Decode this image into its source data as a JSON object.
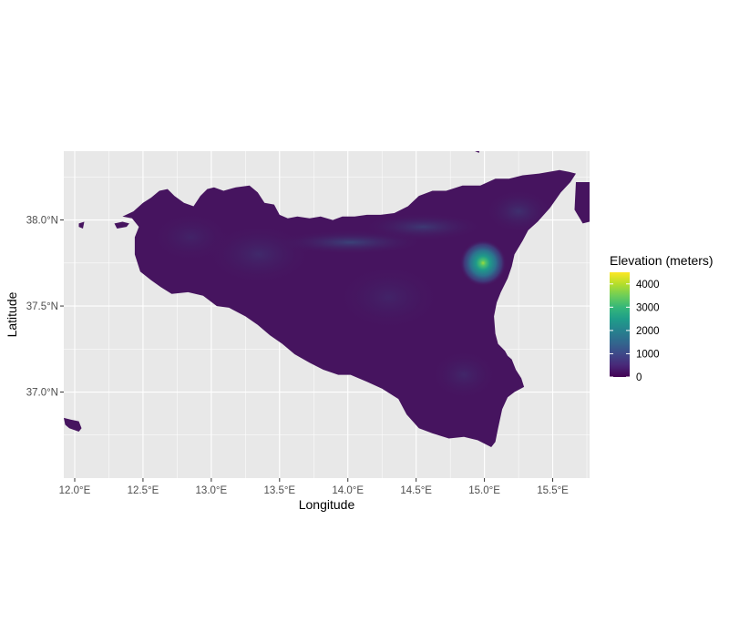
{
  "chart_data": {
    "type": "heatmap",
    "title": "",
    "xlabel": "Longitude",
    "ylabel": "Latitude",
    "xlim": [
      11.92,
      15.77
    ],
    "ylim": [
      36.5,
      38.4
    ],
    "x_ticks": [
      {
        "value": 12.0,
        "label": "12.0°E"
      },
      {
        "value": 12.5,
        "label": "12.5°E"
      },
      {
        "value": 13.0,
        "label": "13.0°E"
      },
      {
        "value": 13.5,
        "label": "13.5°E"
      },
      {
        "value": 14.0,
        "label": "14.0°E"
      },
      {
        "value": 14.5,
        "label": "14.5°E"
      },
      {
        "value": 15.0,
        "label": "15.0°E"
      },
      {
        "value": 15.5,
        "label": "15.5°E"
      }
    ],
    "y_ticks": [
      {
        "value": 37.0,
        "label": "37.0°N"
      },
      {
        "value": 37.5,
        "label": "37.5°N"
      },
      {
        "value": 38.0,
        "label": "38.0°N"
      }
    ],
    "grid": true,
    "panel_background": "#e8e8e8",
    "legend": {
      "title": "Elevation (meters)",
      "position": "right",
      "range": [
        0,
        4500
      ],
      "breaks": [
        {
          "value": 0,
          "label": "0"
        },
        {
          "value": 1000,
          "label": "1000"
        },
        {
          "value": 2000,
          "label": "2000"
        },
        {
          "value": 3000,
          "label": "3000"
        },
        {
          "value": 4000,
          "label": "4000"
        }
      ],
      "colors": [
        "#440154",
        "#482878",
        "#3e4989",
        "#31688e",
        "#26828e",
        "#1f9e89",
        "#35b779",
        "#6ece58",
        "#b5de2b",
        "#fde725"
      ]
    },
    "land_color": "#46145f",
    "peak": {
      "lon": 14.99,
      "lat": 37.75,
      "elevation": 3300
    },
    "island_outline": [
      [
        12.35,
        38.02
      ],
      [
        12.43,
        38.05
      ],
      [
        12.5,
        38.1
      ],
      [
        12.56,
        38.13
      ],
      [
        12.62,
        38.17
      ],
      [
        12.68,
        38.18
      ],
      [
        12.73,
        38.14
      ],
      [
        12.8,
        38.1
      ],
      [
        12.87,
        38.08
      ],
      [
        12.92,
        38.14
      ],
      [
        12.97,
        38.18
      ],
      [
        13.02,
        38.19
      ],
      [
        13.09,
        38.17
      ],
      [
        13.18,
        38.19
      ],
      [
        13.28,
        38.2
      ],
      [
        13.34,
        38.16
      ],
      [
        13.39,
        38.1
      ],
      [
        13.46,
        38.09
      ],
      [
        13.5,
        38.03
      ],
      [
        13.56,
        38.01
      ],
      [
        13.63,
        38.02
      ],
      [
        13.72,
        38.01
      ],
      [
        13.8,
        38.02
      ],
      [
        13.89,
        38.0
      ],
      [
        13.96,
        38.02
      ],
      [
        14.05,
        38.02
      ],
      [
        14.14,
        38.03
      ],
      [
        14.24,
        38.03
      ],
      [
        14.34,
        38.04
      ],
      [
        14.44,
        38.08
      ],
      [
        14.52,
        38.14
      ],
      [
        14.62,
        38.17
      ],
      [
        14.72,
        38.17
      ],
      [
        14.84,
        38.2
      ],
      [
        14.97,
        38.2
      ],
      [
        15.08,
        38.24
      ],
      [
        15.18,
        38.24
      ],
      [
        15.28,
        38.26
      ],
      [
        15.4,
        38.27
      ],
      [
        15.55,
        38.29
      ],
      [
        15.62,
        38.28
      ],
      [
        15.67,
        38.27
      ],
      [
        15.63,
        38.22
      ],
      [
        15.56,
        38.16
      ],
      [
        15.48,
        38.07
      ],
      [
        15.39,
        37.99
      ],
      [
        15.32,
        37.94
      ],
      [
        15.28,
        37.88
      ],
      [
        15.22,
        37.8
      ],
      [
        15.2,
        37.73
      ],
      [
        15.17,
        37.66
      ],
      [
        15.12,
        37.58
      ],
      [
        15.09,
        37.52
      ],
      [
        15.07,
        37.44
      ],
      [
        15.08,
        37.34
      ],
      [
        15.1,
        37.28
      ],
      [
        15.15,
        37.24
      ],
      [
        15.17,
        37.21
      ],
      [
        15.2,
        37.19
      ],
      [
        15.23,
        37.13
      ],
      [
        15.27,
        37.08
      ],
      [
        15.29,
        37.03
      ],
      [
        15.22,
        37.0
      ],
      [
        15.17,
        36.97
      ],
      [
        15.13,
        36.9
      ],
      [
        15.1,
        36.79
      ],
      [
        15.08,
        36.71
      ],
      [
        15.05,
        36.68
      ],
      [
        14.95,
        36.72
      ],
      [
        14.85,
        36.74
      ],
      [
        14.74,
        36.73
      ],
      [
        14.62,
        36.76
      ],
      [
        14.52,
        36.79
      ],
      [
        14.43,
        36.87
      ],
      [
        14.37,
        36.96
      ],
      [
        14.25,
        37.02
      ],
      [
        14.14,
        37.06
      ],
      [
        14.02,
        37.1
      ],
      [
        13.93,
        37.1
      ],
      [
        13.82,
        37.13
      ],
      [
        13.72,
        37.17
      ],
      [
        13.61,
        37.22
      ],
      [
        13.52,
        37.28
      ],
      [
        13.43,
        37.33
      ],
      [
        13.34,
        37.39
      ],
      [
        13.25,
        37.44
      ],
      [
        13.13,
        37.49
      ],
      [
        13.04,
        37.5
      ],
      [
        12.94,
        37.56
      ],
      [
        12.83,
        37.58
      ],
      [
        12.71,
        37.57
      ],
      [
        12.63,
        37.61
      ],
      [
        12.56,
        37.65
      ],
      [
        12.48,
        37.7
      ],
      [
        12.44,
        37.8
      ],
      [
        12.44,
        37.9
      ],
      [
        12.47,
        37.96
      ],
      [
        12.42,
        38.01
      ],
      [
        12.35,
        38.02
      ]
    ],
    "small_islands": [
      [
        [
          12.29,
          37.98
        ],
        [
          12.35,
          37.99
        ],
        [
          12.4,
          37.98
        ],
        [
          12.38,
          37.96
        ],
        [
          12.31,
          37.95
        ],
        [
          12.29,
          37.98
        ]
      ],
      [
        [
          12.03,
          37.98
        ],
        [
          12.07,
          37.99
        ],
        [
          12.06,
          37.95
        ],
        [
          12.03,
          37.96
        ],
        [
          12.03,
          37.98
        ]
      ],
      [
        [
          11.92,
          36.85
        ],
        [
          11.97,
          36.84
        ],
        [
          12.03,
          36.83
        ],
        [
          12.05,
          36.79
        ],
        [
          12.03,
          36.77
        ],
        [
          11.96,
          36.79
        ],
        [
          11.93,
          36.81
        ],
        [
          11.92,
          36.85
        ]
      ],
      [
        [
          14.93,
          38.42
        ],
        [
          14.97,
          38.42
        ],
        [
          14.96,
          38.39
        ],
        [
          14.93,
          38.4
        ],
        [
          14.93,
          38.42
        ]
      ],
      [
        [
          15.67,
          38.22
        ],
        [
          15.77,
          38.22
        ],
        [
          15.77,
          37.99
        ],
        [
          15.72,
          37.98
        ],
        [
          15.66,
          38.06
        ],
        [
          15.67,
          38.22
        ]
      ]
    ],
    "raised_areas": [
      {
        "lon": 14.02,
        "lat": 37.87,
        "rx": 0.55,
        "ry": 0.07,
        "elevation": 1500
      },
      {
        "lon": 14.55,
        "lat": 37.96,
        "rx": 0.45,
        "ry": 0.08,
        "elevation": 1200
      },
      {
        "lon": 15.25,
        "lat": 38.05,
        "rx": 0.25,
        "ry": 0.13,
        "elevation": 900
      },
      {
        "lon": 13.35,
        "lat": 37.8,
        "rx": 0.4,
        "ry": 0.18,
        "elevation": 700
      },
      {
        "lon": 12.85,
        "lat": 37.9,
        "rx": 0.3,
        "ry": 0.15,
        "elevation": 500
      },
      {
        "lon": 14.85,
        "lat": 37.1,
        "rx": 0.25,
        "ry": 0.15,
        "elevation": 600
      },
      {
        "lon": 14.3,
        "lat": 37.55,
        "rx": 0.4,
        "ry": 0.2,
        "elevation": 500
      }
    ]
  }
}
